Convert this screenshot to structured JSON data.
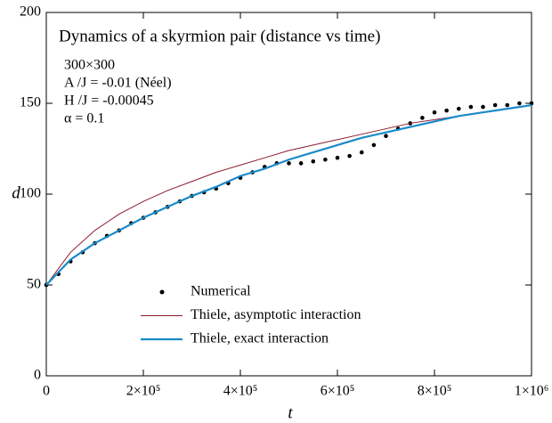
{
  "chart_data": {
    "type": "line",
    "title": "Dynamics of a skyrmion pair (distance vs time)",
    "annotations": [
      "300×300",
      "A /J = -0.01 (Néel)",
      "H /J = -0.00045",
      "α = 0.1"
    ],
    "xlabel": "t",
    "ylabel": "d",
    "xlim": [
      0,
      1000000
    ],
    "xticks": [
      0,
      {
        "value": 200000,
        "label": "2×10⁵"
      },
      {
        "value": 400000,
        "label": "4×10⁵"
      },
      {
        "value": 600000,
        "label": "6×10⁵"
      },
      {
        "value": 800000,
        "label": "8×10⁵"
      },
      {
        "value": 1000000,
        "label": "1×10⁶"
      }
    ],
    "ylim": [
      0,
      200
    ],
    "yticks": [
      0,
      50,
      100,
      150,
      200
    ],
    "legend": "lower center",
    "series": [
      {
        "name": "Numerical",
        "color": "#000000",
        "style": "scatter",
        "x": [
          0,
          25000,
          50000,
          75000,
          100000,
          125000,
          150000,
          175000,
          200000,
          225000,
          250000,
          275000,
          300000,
          325000,
          350000,
          375000,
          400000,
          425000,
          450000,
          475000,
          500000,
          525000,
          550000,
          575000,
          600000,
          625000,
          650000,
          675000,
          700000,
          725000,
          750000,
          775000,
          800000,
          825000,
          850000,
          875000,
          900000,
          925000,
          950000,
          975000,
          1000000
        ],
        "values": [
          50,
          56,
          63,
          68,
          73,
          77,
          80,
          84,
          87,
          90,
          93,
          96,
          99,
          101,
          103,
          106,
          109,
          112,
          115,
          117,
          117,
          117,
          118,
          119,
          120,
          121,
          123,
          127,
          132,
          136,
          139,
          142,
          145,
          146,
          147,
          148,
          148,
          149,
          149,
          150,
          150
        ]
      },
      {
        "name": "Thiele, asymptotic interaction",
        "color": "#8b1a2b",
        "style": "line",
        "x": [
          0,
          50000,
          100000,
          150000,
          200000,
          250000,
          300000,
          350000,
          400000,
          450000,
          500000,
          550000,
          600000,
          650000,
          700000,
          750000,
          800000,
          850000,
          900000,
          950000,
          1000000
        ],
        "values": [
          50,
          68,
          80,
          89,
          96,
          102,
          107,
          112,
          116,
          120,
          124,
          127,
          130,
          133,
          136,
          139,
          141,
          143,
          145,
          147,
          149
        ]
      },
      {
        "name": "Thiele, exact interaction",
        "color": "#1b8ac9",
        "style": "line",
        "x": [
          0,
          50000,
          100000,
          150000,
          200000,
          250000,
          300000,
          350000,
          400000,
          450000,
          500000,
          550000,
          600000,
          650000,
          700000,
          750000,
          800000,
          850000,
          900000,
          950000,
          1000000
        ],
        "values": [
          50,
          64,
          73,
          80,
          87,
          93,
          99,
          104,
          110,
          114,
          119,
          123,
          127,
          131,
          134,
          137,
          140,
          143,
          145,
          147,
          149
        ]
      }
    ]
  }
}
